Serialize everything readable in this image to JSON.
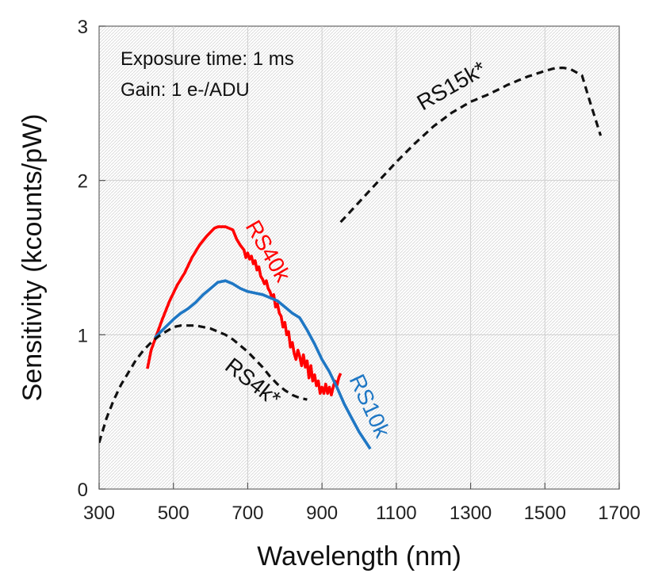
{
  "chart_data": {
    "type": "line",
    "xlabel": "Wavelength (nm)",
    "ylabel": "Sensitivity (kcounts/pW)",
    "xlim": [
      300,
      1700
    ],
    "ylim": [
      0,
      3
    ],
    "xticks": [
      300,
      500,
      700,
      900,
      1100,
      1300,
      1500,
      1700
    ],
    "yticks": [
      0,
      1,
      2,
      3
    ],
    "grid": true,
    "annotations": [
      "Exposure time: 1 ms",
      "Gain: 1 e-/ADU"
    ],
    "series": [
      {
        "name": "RS40k",
        "color": "#ff0000",
        "style": "solid",
        "x": [
          430,
          440,
          455,
          470,
          490,
          510,
          530,
          550,
          570,
          590,
          610,
          620,
          630,
          640,
          650,
          660,
          670,
          680,
          690,
          695,
          700,
          705,
          710,
          715,
          720,
          725,
          730,
          735,
          740,
          745,
          750,
          755,
          760,
          765,
          770,
          775,
          780,
          785,
          790,
          795,
          800,
          805,
          810,
          815,
          820,
          825,
          830,
          835,
          840,
          845,
          850,
          855,
          860,
          865,
          870,
          875,
          880,
          885,
          890,
          895,
          900,
          905,
          910,
          915,
          920,
          925,
          930,
          935,
          940,
          945,
          950
        ],
        "y": [
          0.78,
          0.9,
          1.0,
          1.1,
          1.22,
          1.32,
          1.4,
          1.5,
          1.58,
          1.64,
          1.69,
          1.7,
          1.7,
          1.7,
          1.69,
          1.68,
          1.62,
          1.58,
          1.55,
          1.5,
          1.53,
          1.49,
          1.51,
          1.46,
          1.48,
          1.42,
          1.44,
          1.38,
          1.36,
          1.33,
          1.35,
          1.3,
          1.28,
          1.24,
          1.26,
          1.18,
          1.2,
          1.14,
          1.12,
          1.05,
          1.08,
          1.0,
          1.02,
          0.92,
          0.95,
          0.88,
          0.84,
          0.9,
          0.86,
          0.8,
          0.87,
          0.79,
          0.83,
          0.72,
          0.8,
          0.7,
          0.74,
          0.67,
          0.7,
          0.62,
          0.66,
          0.62,
          0.68,
          0.62,
          0.66,
          0.61,
          0.66,
          0.7,
          0.67,
          0.72,
          0.75
        ]
      },
      {
        "name": "RS10k",
        "color": "#1f77c4",
        "style": "solid",
        "x": [
          450,
          470,
          500,
          520,
          540,
          560,
          580,
          600,
          620,
          640,
          660,
          680,
          700,
          720,
          740,
          760,
          780,
          800,
          820,
          840,
          860,
          880,
          900,
          920,
          940,
          960,
          980,
          1000,
          1030
        ],
        "y": [
          0.98,
          1.03,
          1.1,
          1.14,
          1.17,
          1.21,
          1.26,
          1.3,
          1.34,
          1.35,
          1.33,
          1.3,
          1.28,
          1.27,
          1.26,
          1.24,
          1.22,
          1.18,
          1.14,
          1.11,
          1.03,
          0.94,
          0.84,
          0.76,
          0.66,
          0.55,
          0.46,
          0.37,
          0.26
        ]
      },
      {
        "name": "RS4k*",
        "color": "#111111",
        "style": "dashed",
        "x": [
          300,
          320,
          340,
          360,
          380,
          400,
          420,
          440,
          460,
          480,
          500,
          520,
          540,
          560,
          580,
          600,
          620,
          640,
          660,
          680,
          700,
          720,
          740,
          760,
          780,
          800,
          820,
          840,
          860
        ],
        "y": [
          0.3,
          0.46,
          0.58,
          0.68,
          0.76,
          0.84,
          0.9,
          0.95,
          0.99,
          1.02,
          1.05,
          1.06,
          1.06,
          1.06,
          1.05,
          1.04,
          1.02,
          1.0,
          0.97,
          0.93,
          0.89,
          0.84,
          0.79,
          0.73,
          0.68,
          0.64,
          0.61,
          0.59,
          0.58
        ]
      },
      {
        "name": "RS15k*",
        "color": "#111111",
        "style": "dashed",
        "x": [
          950,
          1000,
          1050,
          1100,
          1150,
          1200,
          1250,
          1300,
          1350,
          1400,
          1450,
          1500,
          1530,
          1550,
          1570,
          1600,
          1620,
          1650
        ],
        "y": [
          1.73,
          1.86,
          1.99,
          2.12,
          2.24,
          2.35,
          2.44,
          2.51,
          2.56,
          2.62,
          2.67,
          2.71,
          2.73,
          2.73,
          2.72,
          2.68,
          2.52,
          2.29
        ]
      }
    ]
  }
}
